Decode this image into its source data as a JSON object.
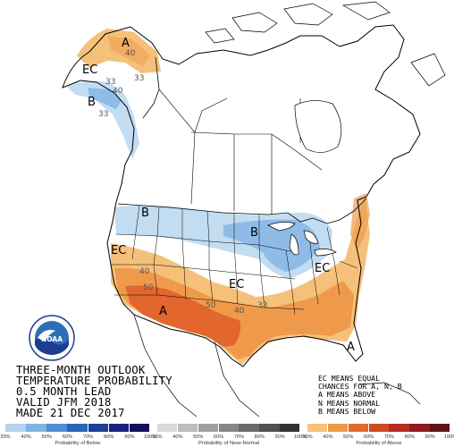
{
  "title_lines": [
    "THREE-MONTH OUTLOOK",
    "TEMPERATURE PROBABILITY",
    "0.5 MONTH LEAD",
    "VALID JFM 2018",
    "MADE 21 DEC 2017"
  ],
  "key_lines": [
    "EC MEANS EQUAL",
    "CHANCES FOR A, N, B",
    "A MEANS ABOVE",
    "N MEANS NORMAL",
    "B MEANS BELOW"
  ],
  "logo": {
    "text": "NOAA",
    "colors": {
      "sky": "#2a6fb8",
      "sea": "#1b3f8f",
      "ring": "#ffffff"
    }
  },
  "map_labels": [
    {
      "id": "a-alaska",
      "text": "A"
    },
    {
      "id": "ec-alaska",
      "text": "EC"
    },
    {
      "id": "b-alaska",
      "text": "B"
    },
    {
      "id": "b-northwest",
      "text": "B"
    },
    {
      "id": "b-great-lakes",
      "text": "B"
    },
    {
      "id": "ec-west",
      "text": "EC"
    },
    {
      "id": "ec-central",
      "text": "EC"
    },
    {
      "id": "ec-east",
      "text": "EC"
    },
    {
      "id": "a-southwest",
      "text": "A"
    },
    {
      "id": "a-southeast",
      "text": "A"
    }
  ],
  "contour_labels": [
    {
      "id": "c40-ak1",
      "text": "40"
    },
    {
      "id": "c33-ak1",
      "text": "33"
    },
    {
      "id": "c33-ak2",
      "text": "33"
    },
    {
      "id": "c33-ak3",
      "text": "33"
    },
    {
      "id": "c40-ak2",
      "text": "40"
    },
    {
      "id": "c40-sw1",
      "text": "40"
    },
    {
      "id": "c50-sw",
      "text": "50"
    },
    {
      "id": "c50-s",
      "text": "50"
    },
    {
      "id": "c40-s",
      "text": "40"
    },
    {
      "id": "c33-s",
      "text": "33"
    }
  ],
  "scale": {
    "below": {
      "label": "Probability of Below",
      "ticks": [
        "33%",
        "40%",
        "50%",
        "60%",
        "70%",
        "80%",
        "90%",
        "100%"
      ],
      "colors": [
        "#b3d3ef",
        "#7fb4e3",
        "#4e8fd1",
        "#2a64b8",
        "#1d3f96",
        "#1a237e",
        "#140e5c"
      ]
    },
    "normal": {
      "label": "Probability of Near-Normal",
      "ticks": [
        "33%",
        "40%",
        "50%",
        "60%",
        "70%",
        "80%",
        "90%",
        "100%"
      ],
      "colors": [
        "#d9d9d9",
        "#bdbdbd",
        "#a0a0a0",
        "#858585",
        "#6a6a6a",
        "#505050",
        "#333333"
      ]
    },
    "above": {
      "label": "Probability of Above",
      "ticks": [
        "33%",
        "40%",
        "50%",
        "60%",
        "70%",
        "80%",
        "90%",
        "100%"
      ],
      "colors": [
        "#f6c27a",
        "#ef9a45",
        "#e26a2c",
        "#d1481f",
        "#b72b23",
        "#8e1c1e",
        "#5e1414"
      ]
    }
  },
  "colors": {
    "above1": "#f5c17a",
    "above2": "#ef9a4a",
    "above3": "#e2662d",
    "below1": "#c2dcf2",
    "below2": "#8fbbe6",
    "land": "#ffffff",
    "border": "#000000"
  }
}
